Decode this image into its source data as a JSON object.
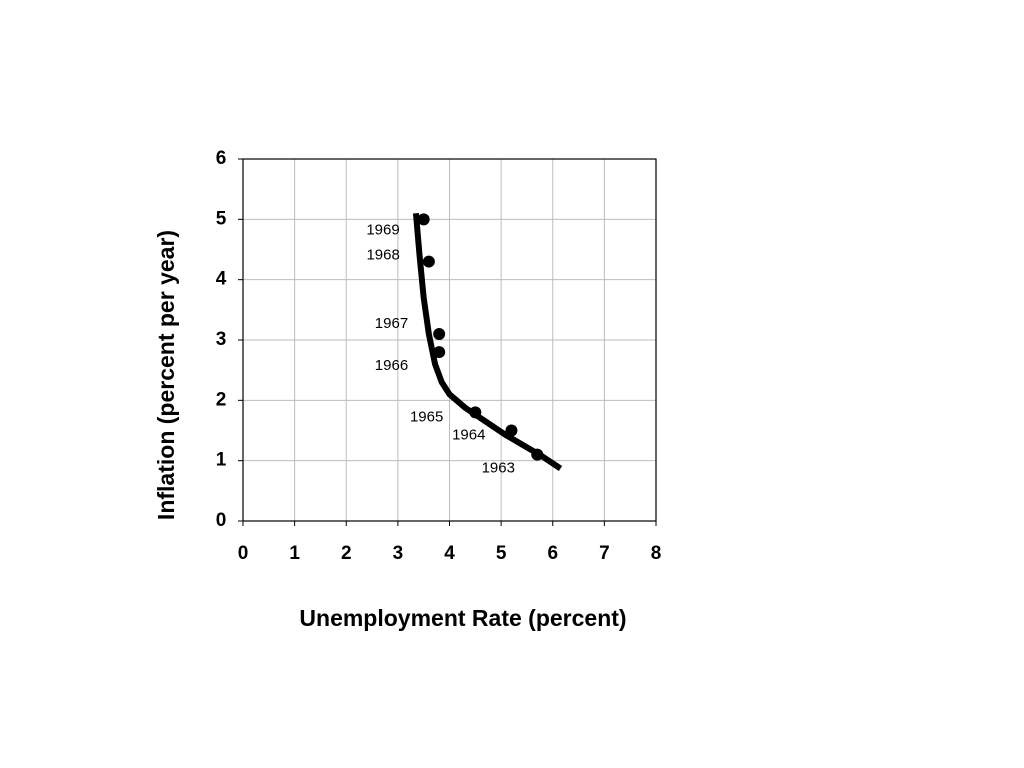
{
  "chart_data": {
    "type": "scatter",
    "xlabel": "Unemployment Rate (percent)",
    "ylabel": "Inflation (percent per year)",
    "xlim": [
      0,
      8
    ],
    "xticks": [
      0,
      1,
      2,
      3,
      4,
      5,
      6,
      7,
      8
    ],
    "ylim": [
      0,
      6
    ],
    "yticks": [
      0,
      1,
      2,
      3,
      4,
      5,
      6
    ],
    "grid": true,
    "series": [
      {
        "color": "#000000",
        "marker": "circle",
        "x": [
          3.5,
          3.6,
          3.8,
          3.8,
          4.5,
          5.2,
          5.7
        ],
        "values": [
          5.0,
          4.3,
          3.1,
          2.8,
          1.8,
          1.5,
          1.1
        ],
        "point_labels": [
          "1969",
          "1968",
          "1967",
          "1966",
          "1965",
          "1964",
          "1963"
        ]
      },
      {
        "color": "#000000",
        "marker": "line",
        "x": [
          3.35,
          3.42,
          3.5,
          3.6,
          3.72,
          3.85,
          4.0,
          4.3,
          4.7,
          5.1,
          5.5,
          5.8,
          6.15
        ],
        "values": [
          5.1,
          4.4,
          3.7,
          3.1,
          2.6,
          2.3,
          2.1,
          1.88,
          1.65,
          1.42,
          1.22,
          1.07,
          0.87
        ]
      }
    ]
  }
}
